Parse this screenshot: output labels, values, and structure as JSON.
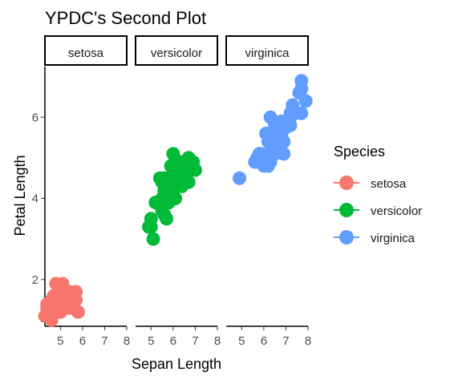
{
  "chart_data": {
    "type": "scatter",
    "title": "YPDC's Second Plot",
    "xlabel": "Sepan Length",
    "ylabel": "Petal Length",
    "xlim": [
      4.3,
      8.0
    ],
    "ylim": [
      0.85,
      7.25
    ],
    "xticks": [
      5,
      6,
      7,
      8
    ],
    "yticks": [
      2,
      4,
      6
    ],
    "legend": {
      "title": "Species",
      "position": "right"
    },
    "facets": [
      "setosa",
      "versicolor",
      "virginica"
    ],
    "series": [
      {
        "name": "setosa",
        "color": "#F8766D",
        "points": [
          {
            "x": 5.1,
            "y": 1.4
          },
          {
            "x": 4.9,
            "y": 1.4
          },
          {
            "x": 4.7,
            "y": 1.3
          },
          {
            "x": 4.6,
            "y": 1.5
          },
          {
            "x": 5.0,
            "y": 1.4
          },
          {
            "x": 5.4,
            "y": 1.7
          },
          {
            "x": 4.6,
            "y": 1.4
          },
          {
            "x": 5.0,
            "y": 1.5
          },
          {
            "x": 4.4,
            "y": 1.4
          },
          {
            "x": 4.9,
            "y": 1.5
          },
          {
            "x": 5.4,
            "y": 1.5
          },
          {
            "x": 4.8,
            "y": 1.6
          },
          {
            "x": 4.8,
            "y": 1.4
          },
          {
            "x": 4.3,
            "y": 1.1
          },
          {
            "x": 5.8,
            "y": 1.2
          },
          {
            "x": 5.7,
            "y": 1.5
          },
          {
            "x": 5.4,
            "y": 1.3
          },
          {
            "x": 5.1,
            "y": 1.4
          },
          {
            "x": 5.7,
            "y": 1.7
          },
          {
            "x": 5.1,
            "y": 1.5
          },
          {
            "x": 5.4,
            "y": 1.7
          },
          {
            "x": 5.1,
            "y": 1.5
          },
          {
            "x": 4.6,
            "y": 1.0
          },
          {
            "x": 5.1,
            "y": 1.7
          },
          {
            "x": 4.8,
            "y": 1.9
          },
          {
            "x": 5.0,
            "y": 1.6
          },
          {
            "x": 5.0,
            "y": 1.6
          },
          {
            "x": 5.2,
            "y": 1.5
          },
          {
            "x": 5.2,
            "y": 1.4
          },
          {
            "x": 4.7,
            "y": 1.6
          },
          {
            "x": 4.8,
            "y": 1.6
          },
          {
            "x": 5.4,
            "y": 1.5
          },
          {
            "x": 5.2,
            "y": 1.5
          },
          {
            "x": 5.5,
            "y": 1.4
          },
          {
            "x": 4.9,
            "y": 1.5
          },
          {
            "x": 5.0,
            "y": 1.2
          },
          {
            "x": 5.5,
            "y": 1.3
          },
          {
            "x": 4.9,
            "y": 1.4
          },
          {
            "x": 4.4,
            "y": 1.3
          },
          {
            "x": 5.1,
            "y": 1.5
          },
          {
            "x": 5.0,
            "y": 1.3
          },
          {
            "x": 4.5,
            "y": 1.3
          },
          {
            "x": 4.4,
            "y": 1.3
          },
          {
            "x": 5.0,
            "y": 1.6
          },
          {
            "x": 5.1,
            "y": 1.9
          },
          {
            "x": 4.8,
            "y": 1.4
          },
          {
            "x": 5.1,
            "y": 1.6
          },
          {
            "x": 4.6,
            "y": 1.4
          },
          {
            "x": 5.3,
            "y": 1.5
          },
          {
            "x": 5.0,
            "y": 1.4
          }
        ]
      },
      {
        "name": "versicolor",
        "color": "#00BA38",
        "points": [
          {
            "x": 7.0,
            "y": 4.7
          },
          {
            "x": 6.4,
            "y": 4.5
          },
          {
            "x": 6.9,
            "y": 4.9
          },
          {
            "x": 5.5,
            "y": 4.0
          },
          {
            "x": 6.5,
            "y": 4.6
          },
          {
            "x": 5.7,
            "y": 4.5
          },
          {
            "x": 6.3,
            "y": 4.7
          },
          {
            "x": 4.9,
            "y": 3.3
          },
          {
            "x": 6.6,
            "y": 4.6
          },
          {
            "x": 5.2,
            "y": 3.9
          },
          {
            "x": 5.0,
            "y": 3.5
          },
          {
            "x": 5.9,
            "y": 4.2
          },
          {
            "x": 6.0,
            "y": 4.0
          },
          {
            "x": 6.1,
            "y": 4.7
          },
          {
            "x": 5.6,
            "y": 3.6
          },
          {
            "x": 6.7,
            "y": 4.4
          },
          {
            "x": 5.6,
            "y": 4.5
          },
          {
            "x": 5.8,
            "y": 4.1
          },
          {
            "x": 6.2,
            "y": 4.5
          },
          {
            "x": 5.6,
            "y": 3.9
          },
          {
            "x": 5.9,
            "y": 4.8
          },
          {
            "x": 6.1,
            "y": 4.0
          },
          {
            "x": 6.3,
            "y": 4.9
          },
          {
            "x": 6.1,
            "y": 4.7
          },
          {
            "x": 6.4,
            "y": 4.3
          },
          {
            "x": 6.6,
            "y": 4.4
          },
          {
            "x": 6.8,
            "y": 4.8
          },
          {
            "x": 6.7,
            "y": 5.0
          },
          {
            "x": 6.0,
            "y": 4.5
          },
          {
            "x": 5.7,
            "y": 3.5
          },
          {
            "x": 5.5,
            "y": 3.8
          },
          {
            "x": 5.5,
            "y": 3.7
          },
          {
            "x": 5.8,
            "y": 3.9
          },
          {
            "x": 6.0,
            "y": 5.1
          },
          {
            "x": 5.4,
            "y": 4.5
          },
          {
            "x": 6.0,
            "y": 4.5
          },
          {
            "x": 6.7,
            "y": 4.7
          },
          {
            "x": 6.3,
            "y": 4.4
          },
          {
            "x": 5.6,
            "y": 4.1
          },
          {
            "x": 5.5,
            "y": 4.0
          },
          {
            "x": 5.5,
            "y": 4.4
          },
          {
            "x": 6.1,
            "y": 4.6
          },
          {
            "x": 5.8,
            "y": 4.0
          },
          {
            "x": 5.0,
            "y": 3.3
          },
          {
            "x": 5.6,
            "y": 4.2
          },
          {
            "x": 5.7,
            "y": 4.2
          },
          {
            "x": 5.7,
            "y": 4.2
          },
          {
            "x": 6.2,
            "y": 4.3
          },
          {
            "x": 5.1,
            "y": 3.0
          },
          {
            "x": 5.7,
            "y": 4.1
          }
        ]
      },
      {
        "name": "virginica",
        "color": "#619CFF",
        "points": [
          {
            "x": 6.3,
            "y": 6.0
          },
          {
            "x": 5.8,
            "y": 5.1
          },
          {
            "x": 7.1,
            "y": 5.9
          },
          {
            "x": 6.3,
            "y": 5.6
          },
          {
            "x": 6.5,
            "y": 5.8
          },
          {
            "x": 7.6,
            "y": 6.6
          },
          {
            "x": 4.9,
            "y": 4.5
          },
          {
            "x": 7.3,
            "y": 6.3
          },
          {
            "x": 6.7,
            "y": 5.8
          },
          {
            "x": 7.2,
            "y": 6.1
          },
          {
            "x": 6.5,
            "y": 5.1
          },
          {
            "x": 6.4,
            "y": 5.3
          },
          {
            "x": 6.8,
            "y": 5.5
          },
          {
            "x": 5.7,
            "y": 5.0
          },
          {
            "x": 5.8,
            "y": 5.1
          },
          {
            "x": 6.4,
            "y": 5.3
          },
          {
            "x": 6.5,
            "y": 5.5
          },
          {
            "x": 7.7,
            "y": 6.7
          },
          {
            "x": 7.7,
            "y": 6.9
          },
          {
            "x": 6.0,
            "y": 5.0
          },
          {
            "x": 6.9,
            "y": 5.7
          },
          {
            "x": 5.6,
            "y": 4.9
          },
          {
            "x": 7.7,
            "y": 6.7
          },
          {
            "x": 6.3,
            "y": 4.9
          },
          {
            "x": 6.7,
            "y": 5.7
          },
          {
            "x": 7.2,
            "y": 6.0
          },
          {
            "x": 6.2,
            "y": 4.8
          },
          {
            "x": 6.1,
            "y": 4.9
          },
          {
            "x": 6.4,
            "y": 5.6
          },
          {
            "x": 7.2,
            "y": 5.8
          },
          {
            "x": 7.4,
            "y": 6.1
          },
          {
            "x": 7.9,
            "y": 6.4
          },
          {
            "x": 6.4,
            "y": 5.6
          },
          {
            "x": 6.3,
            "y": 5.1
          },
          {
            "x": 6.1,
            "y": 5.6
          },
          {
            "x": 7.7,
            "y": 6.1
          },
          {
            "x": 6.3,
            "y": 5.6
          },
          {
            "x": 6.4,
            "y": 5.5
          },
          {
            "x": 6.0,
            "y": 4.8
          },
          {
            "x": 6.9,
            "y": 5.4
          },
          {
            "x": 6.7,
            "y": 5.6
          },
          {
            "x": 6.9,
            "y": 5.1
          },
          {
            "x": 5.8,
            "y": 5.1
          },
          {
            "x": 6.8,
            "y": 5.9
          },
          {
            "x": 6.7,
            "y": 5.7
          },
          {
            "x": 6.7,
            "y": 5.2
          },
          {
            "x": 6.3,
            "y": 5.0
          },
          {
            "x": 6.5,
            "y": 5.2
          },
          {
            "x": 6.2,
            "y": 5.4
          },
          {
            "x": 5.9,
            "y": 5.1
          }
        ]
      }
    ]
  }
}
